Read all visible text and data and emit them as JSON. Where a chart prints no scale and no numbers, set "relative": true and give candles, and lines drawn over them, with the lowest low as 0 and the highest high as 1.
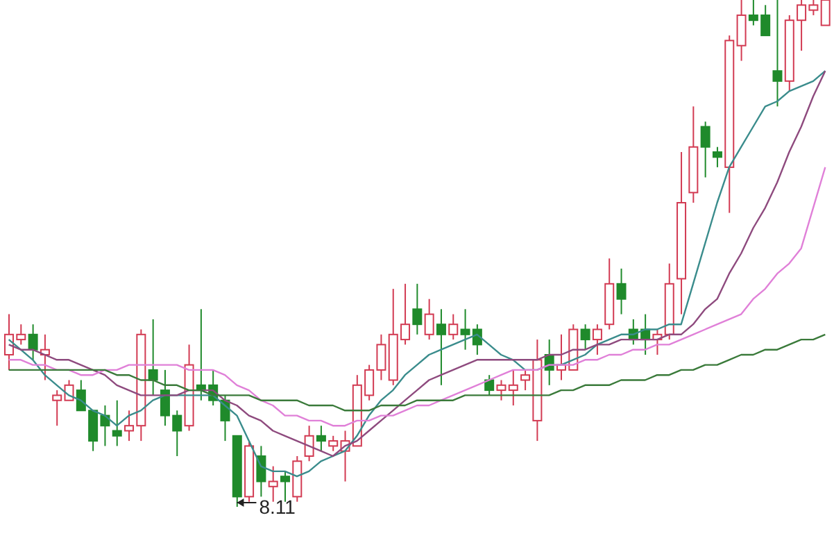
{
  "chart_data": {
    "type": "candlestick",
    "relative": true,
    "categories": [
      null,
      null,
      null,
      null,
      null,
      null,
      null,
      null,
      null,
      null,
      null,
      null,
      null,
      null,
      null,
      null,
      null,
      null,
      null,
      null,
      null,
      null,
      null,
      null,
      null,
      null,
      null,
      null,
      null,
      null,
      null,
      null,
      null,
      null,
      null,
      null,
      null,
      null,
      null,
      null,
      null,
      null,
      null,
      null,
      null,
      null,
      null,
      null,
      null,
      null,
      null,
      null,
      null,
      null,
      null,
      null,
      null,
      null,
      null,
      null,
      null,
      null,
      null,
      null,
      null,
      null,
      null,
      null,
      null
    ],
    "ohlc": [
      [
        0.3,
        0.38,
        0.27,
        0.34
      ],
      [
        0.33,
        0.36,
        0.32,
        0.34
      ],
      [
        0.34,
        0.36,
        0.29,
        0.31
      ],
      [
        0.3,
        0.34,
        0.25,
        0.31
      ],
      [
        0.21,
        0.23,
        0.16,
        0.22
      ],
      [
        0.21,
        0.25,
        0.21,
        0.24
      ],
      [
        0.23,
        0.25,
        0.19,
        0.19
      ],
      [
        0.19,
        0.19,
        0.11,
        0.13
      ],
      [
        0.18,
        0.2,
        0.12,
        0.16
      ],
      [
        0.15,
        0.21,
        0.12,
        0.14
      ],
      [
        0.15,
        0.19,
        0.13,
        0.16
      ],
      [
        0.16,
        0.35,
        0.13,
        0.34
      ],
      [
        0.27,
        0.37,
        0.22,
        0.25
      ],
      [
        0.23,
        0.27,
        0.16,
        0.18
      ],
      [
        0.18,
        0.19,
        0.1,
        0.15
      ],
      [
        0.16,
        0.32,
        0.15,
        0.28
      ],
      [
        0.24,
        0.39,
        0.21,
        0.23
      ],
      [
        0.24,
        0.27,
        0.2,
        0.21
      ],
      [
        0.21,
        0.22,
        0.13,
        0.17
      ],
      [
        0.14,
        0.14,
        0,
        0.02
      ],
      [
        0.02,
        0.13,
        0.01,
        0.12
      ],
      [
        0.1,
        0.12,
        0.02,
        0.05
      ],
      [
        0.04,
        0.08,
        0.01,
        0.05
      ],
      [
        0.06,
        0.07,
        0.01,
        0.05
      ],
      [
        0.02,
        0.1,
        0.01,
        0.09
      ],
      [
        0.1,
        0.16,
        0.09,
        0.14
      ],
      [
        0.14,
        0.16,
        0.11,
        0.13
      ],
      [
        0.12,
        0.14,
        0.11,
        0.13
      ],
      [
        0.11,
        0.15,
        0.05,
        0.13
      ],
      [
        0.12,
        0.26,
        0.12,
        0.24
      ],
      [
        0.22,
        0.28,
        0.21,
        0.27
      ],
      [
        0.27,
        0.34,
        0.25,
        0.32
      ],
      [
        0.25,
        0.43,
        0.24,
        0.34
      ],
      [
        0.33,
        0.44,
        0.32,
        0.36
      ],
      [
        0.39,
        0.44,
        0.34,
        0.36
      ],
      [
        0.34,
        0.41,
        0.33,
        0.38
      ],
      [
        0.36,
        0.39,
        0.24,
        0.34
      ],
      [
        0.34,
        0.38,
        0.33,
        0.36
      ],
      [
        0.35,
        0.39,
        0.31,
        0.34
      ],
      [
        0.35,
        0.36,
        0.3,
        0.32
      ],
      [
        0.25,
        0.26,
        0.22,
        0.23
      ],
      [
        0.23,
        0.25,
        0.21,
        0.24
      ],
      [
        0.23,
        0.27,
        0.2,
        0.24
      ],
      [
        0.25,
        0.27,
        0.23,
        0.26
      ],
      [
        0.17,
        0.33,
        0.13,
        0.29
      ],
      [
        0.3,
        0.33,
        0.24,
        0.27
      ],
      [
        0.27,
        0.34,
        0.25,
        0.28
      ],
      [
        0.27,
        0.36,
        0.27,
        0.35
      ],
      [
        0.35,
        0.36,
        0.31,
        0.33
      ],
      [
        0.33,
        0.36,
        0.3,
        0.35
      ],
      [
        0.36,
        0.49,
        0.35,
        0.44
      ],
      [
        0.44,
        0.47,
        0.38,
        0.41
      ],
      [
        0.35,
        0.37,
        0.32,
        0.33
      ],
      [
        0.35,
        0.38,
        0.3,
        0.33
      ],
      [
        0.33,
        0.35,
        0.3,
        0.34
      ],
      [
        0.34,
        0.48,
        0.33,
        0.44
      ],
      [
        0.45,
        0.7,
        0.38,
        0.6
      ],
      [
        0.62,
        0.79,
        0.6,
        0.71
      ],
      [
        0.75,
        0.76,
        0.65,
        0.71
      ],
      [
        0.7,
        0.71,
        0.67,
        0.69
      ],
      [
        0.67,
        0.93,
        0.58,
        0.92
      ],
      [
        0.91,
        1,
        0.88,
        0.97
      ],
      [
        0.97,
        1,
        0.95,
        0.96
      ],
      [
        0.97,
        0.99,
        0.93,
        0.93
      ],
      [
        0.86,
        1,
        0.79,
        0.84
      ],
      [
        0.84,
        0.97,
        0.82,
        0.96
      ],
      [
        0.96,
        1,
        0.9,
        0.99
      ],
      [
        0.98,
        1,
        0.97,
        0.99
      ],
      [
        0.95,
        1,
        0.95,
        1
      ]
    ],
    "colors": [
      "#d23a52",
      "#d23a52",
      "#1f8a2b",
      "#d23a52",
      "#d23a52",
      "#d23a52",
      "#1f8a2b",
      "#1f8a2b",
      "#1f8a2b",
      "#1f8a2b",
      "#d23a52",
      "#d23a52",
      "#1f8a2b",
      "#1f8a2b",
      "#1f8a2b",
      "#d23a52",
      "#1f8a2b",
      "#1f8a2b",
      "#1f8a2b",
      "#1f8a2b",
      "#d23a52",
      "#1f8a2b",
      "#d23a52",
      "#1f8a2b",
      "#d23a52",
      "#d23a52",
      "#1f8a2b",
      "#d23a52",
      "#d23a52",
      "#d23a52",
      "#d23a52",
      "#d23a52",
      "#d23a52",
      "#d23a52",
      "#1f8a2b",
      "#d23a52",
      "#1f8a2b",
      "#d23a52",
      "#1f8a2b",
      "#1f8a2b",
      "#1f8a2b",
      "#d23a52",
      "#d23a52",
      "#d23a52",
      "#d23a52",
      "#1f8a2b",
      "#d23a52",
      "#d23a52",
      "#1f8a2b",
      "#d23a52",
      "#d23a52",
      "#1f8a2b",
      "#1f8a2b",
      "#1f8a2b",
      "#d23a52",
      "#d23a52",
      "#d23a52",
      "#d23a52",
      "#1f8a2b",
      "#1f8a2b",
      "#d23a52",
      "#d23a52",
      "#1f8a2b",
      "#1f8a2b",
      "#1f8a2b",
      "#d23a52",
      "#d23a52",
      "#d23a52",
      "#d23a52"
    ],
    "series": [
      {
        "type": "line",
        "color": "#3a8c8c",
        "values": [
          0.33,
          0.31,
          0.29,
          0.26,
          0.24,
          0.22,
          0.21,
          0.19,
          0.18,
          0.16,
          0.18,
          0.19,
          0.21,
          0.22,
          0.22,
          0.22,
          0.22,
          0.22,
          0.2,
          0.18,
          0.13,
          0.08,
          0.07,
          0.07,
          0.06,
          0.07,
          0.09,
          0.1,
          0.11,
          0.14,
          0.18,
          0.21,
          0.23,
          0.26,
          0.28,
          0.3,
          0.31,
          0.32,
          0.33,
          0.34,
          0.32,
          0.3,
          0.29,
          0.27,
          0.27,
          0.28,
          0.28,
          0.29,
          0.3,
          0.32,
          0.33,
          0.34,
          0.34,
          0.35,
          0.35,
          0.36,
          0.36,
          0.44,
          0.52,
          0.6,
          0.67,
          0.71,
          0.75,
          0.79,
          0.8,
          0.82,
          0.83,
          0.84,
          0.86
        ]
      },
      {
        "type": "line",
        "color": "#8e4a7e",
        "values": [
          0.32,
          0.31,
          0.31,
          0.3,
          0.29,
          0.29,
          0.28,
          0.27,
          0.26,
          0.24,
          0.23,
          0.22,
          0.22,
          0.22,
          0.22,
          0.23,
          0.23,
          0.23,
          0.21,
          0.2,
          0.18,
          0.17,
          0.15,
          0.14,
          0.13,
          0.12,
          0.11,
          0.1,
          0.12,
          0.13,
          0.15,
          0.17,
          0.19,
          0.21,
          0.23,
          0.25,
          0.26,
          0.27,
          0.28,
          0.29,
          0.29,
          0.29,
          0.29,
          0.29,
          0.29,
          0.3,
          0.3,
          0.31,
          0.31,
          0.32,
          0.32,
          0.33,
          0.33,
          0.33,
          0.33,
          0.34,
          0.34,
          0.36,
          0.39,
          0.41,
          0.46,
          0.5,
          0.55,
          0.59,
          0.64,
          0.7,
          0.75,
          0.81,
          0.86
        ]
      },
      {
        "type": "line",
        "color": "#e080d8",
        "values": [
          0.29,
          0.29,
          0.28,
          0.28,
          0.27,
          0.27,
          0.26,
          0.26,
          0.27,
          0.27,
          0.28,
          0.28,
          0.28,
          0.28,
          0.28,
          0.27,
          0.27,
          0.27,
          0.26,
          0.24,
          0.23,
          0.21,
          0.2,
          0.18,
          0.18,
          0.17,
          0.17,
          0.16,
          0.16,
          0.17,
          0.17,
          0.18,
          0.18,
          0.19,
          0.2,
          0.2,
          0.21,
          0.22,
          0.23,
          0.24,
          0.25,
          0.26,
          0.27,
          0.27,
          0.27,
          0.28,
          0.28,
          0.28,
          0.29,
          0.29,
          0.3,
          0.3,
          0.31,
          0.31,
          0.32,
          0.32,
          0.33,
          0.34,
          0.35,
          0.36,
          0.37,
          0.38,
          0.41,
          0.43,
          0.46,
          0.48,
          0.51,
          0.59,
          0.67
        ]
      },
      {
        "type": "line",
        "color": "#3a7a3a",
        "values": [
          0.27,
          0.27,
          0.27,
          0.27,
          0.27,
          0.27,
          0.27,
          0.27,
          0.27,
          0.26,
          0.26,
          0.25,
          0.25,
          0.24,
          0.24,
          0.23,
          0.23,
          0.22,
          0.22,
          0.22,
          0.22,
          0.21,
          0.21,
          0.21,
          0.21,
          0.2,
          0.2,
          0.2,
          0.19,
          0.19,
          0.19,
          0.2,
          0.2,
          0.2,
          0.21,
          0.21,
          0.21,
          0.21,
          0.22,
          0.22,
          0.22,
          0.22,
          0.22,
          0.22,
          0.22,
          0.22,
          0.23,
          0.23,
          0.24,
          0.24,
          0.24,
          0.25,
          0.25,
          0.25,
          0.26,
          0.26,
          0.27,
          0.27,
          0.28,
          0.28,
          0.29,
          0.3,
          0.3,
          0.31,
          0.31,
          0.32,
          0.33,
          0.33,
          0.34
        ]
      }
    ],
    "annotations": [
      "8.11"
    ],
    "line_style": "solid",
    "marker": "none"
  }
}
